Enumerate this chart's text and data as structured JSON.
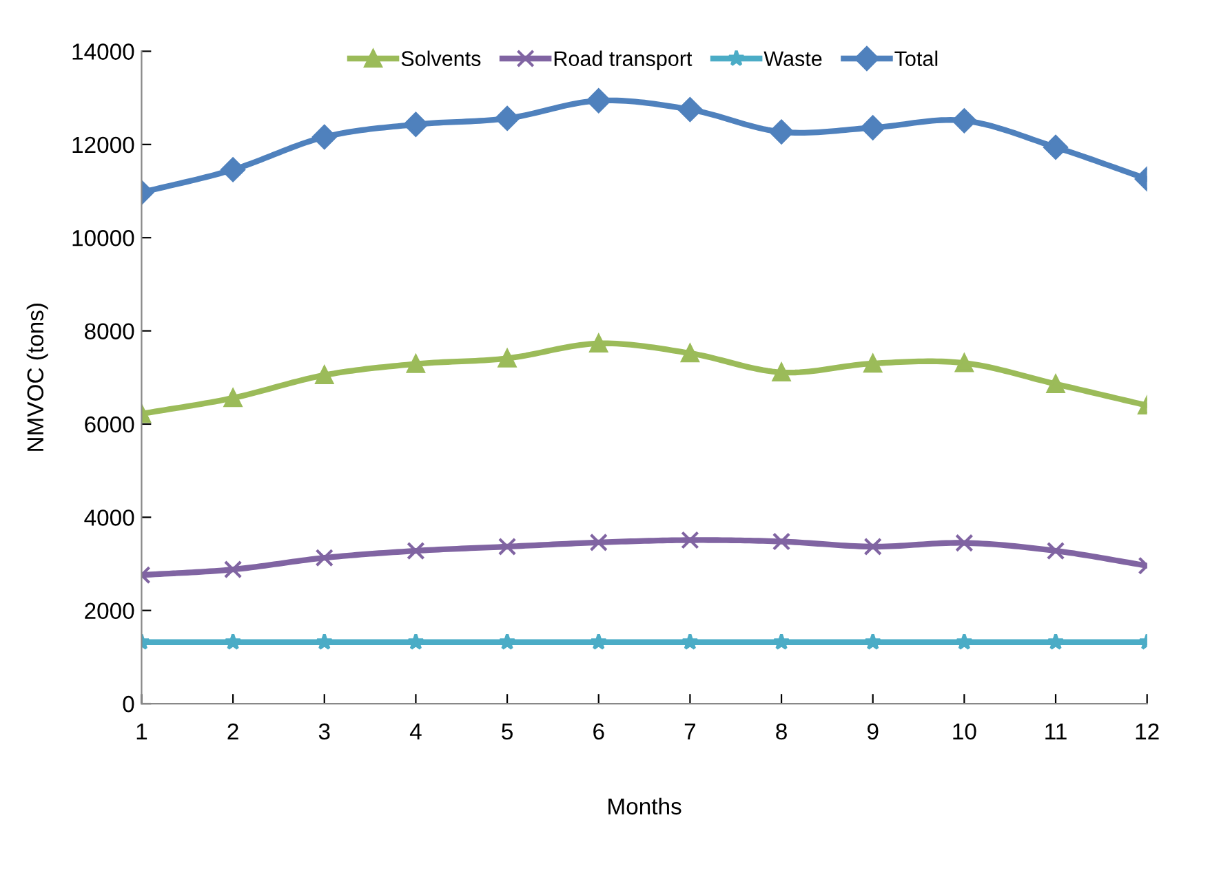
{
  "chart_data": {
    "type": "line",
    "xlabel": "Months",
    "ylabel": "NMVOC (tons)",
    "x": [
      1,
      2,
      3,
      4,
      5,
      6,
      7,
      8,
      9,
      10,
      11,
      12
    ],
    "series": [
      {
        "name": "Solvents",
        "color": "#9bbb59",
        "marker": "triangle",
        "values": [
          6220,
          6560,
          7050,
          7290,
          7410,
          7730,
          7520,
          7110,
          7300,
          7310,
          6860,
          6400
        ]
      },
      {
        "name": "Road transport",
        "color": "#8064a2",
        "marker": "cross",
        "values": [
          2760,
          2880,
          3130,
          3280,
          3370,
          3460,
          3510,
          3480,
          3370,
          3450,
          3280,
          2960
        ]
      },
      {
        "name": "Waste",
        "color": "#4bacc6",
        "marker": "star",
        "values": [
          1320,
          1320,
          1320,
          1320,
          1320,
          1320,
          1320,
          1320,
          1320,
          1320,
          1320,
          1320
        ]
      },
      {
        "name": "Total",
        "color": "#4f81bd",
        "marker": "diamond",
        "values": [
          10970,
          11460,
          12160,
          12430,
          12560,
          12940,
          12750,
          12270,
          12360,
          12510,
          11940,
          11260
        ]
      }
    ],
    "xlim": [
      1,
      12
    ],
    "xticks": [
      1,
      2,
      3,
      4,
      5,
      6,
      7,
      8,
      9,
      10,
      11,
      12
    ],
    "ylim": [
      0,
      14000
    ],
    "yticks": [
      0,
      2000,
      4000,
      6000,
      8000,
      10000,
      12000,
      14000
    ],
    "grid": false,
    "legend": "top",
    "line_style": "solid"
  }
}
